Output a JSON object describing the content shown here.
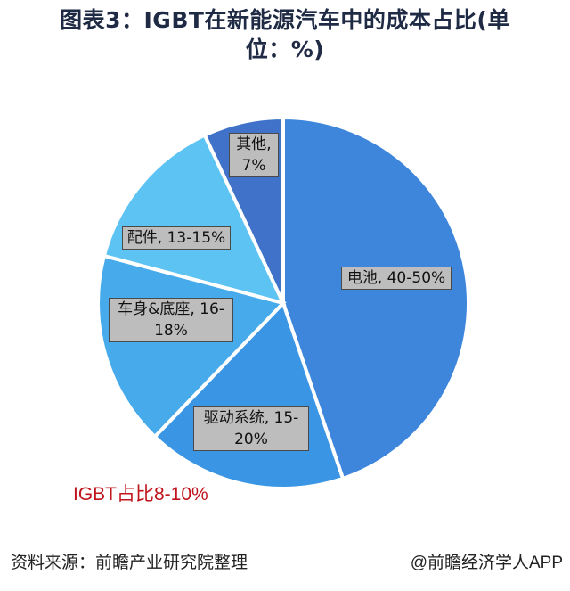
{
  "title_line1": "图表3：IGBT在新能源汽车中的成本占比(单",
  "title_line2": "位：%)",
  "chart_data": {
    "type": "pie",
    "slices": [
      {
        "label": "电池, 40-50%",
        "value": 45,
        "color": "#3d86dc"
      },
      {
        "label": "驱动系统, 15-20%",
        "value": 17.5,
        "color": "#3a95e4"
      },
      {
        "label": "车身&底座, 16-18%",
        "value": 17,
        "color": "#46aaeb"
      },
      {
        "label": "配件, 13-15%",
        "value": 14,
        "color": "#5cc3f3"
      },
      {
        "label": "其他, 7%",
        "value": 7,
        "color": "#3f72c8"
      }
    ]
  },
  "labels": {
    "battery": "电池, 40-50%",
    "drive_1": "驱动系统, 15-",
    "drive_2": "20%",
    "body_1": "车身&底座, 16-",
    "body_2": "18%",
    "parts": "配件, 13-15%",
    "other_1": "其他,",
    "other_2": "7%"
  },
  "highlight": "IGBT占比8-10%",
  "source": "资料来源：前瞻产业研究院整理",
  "credit": "@前瞻经济学人APP"
}
